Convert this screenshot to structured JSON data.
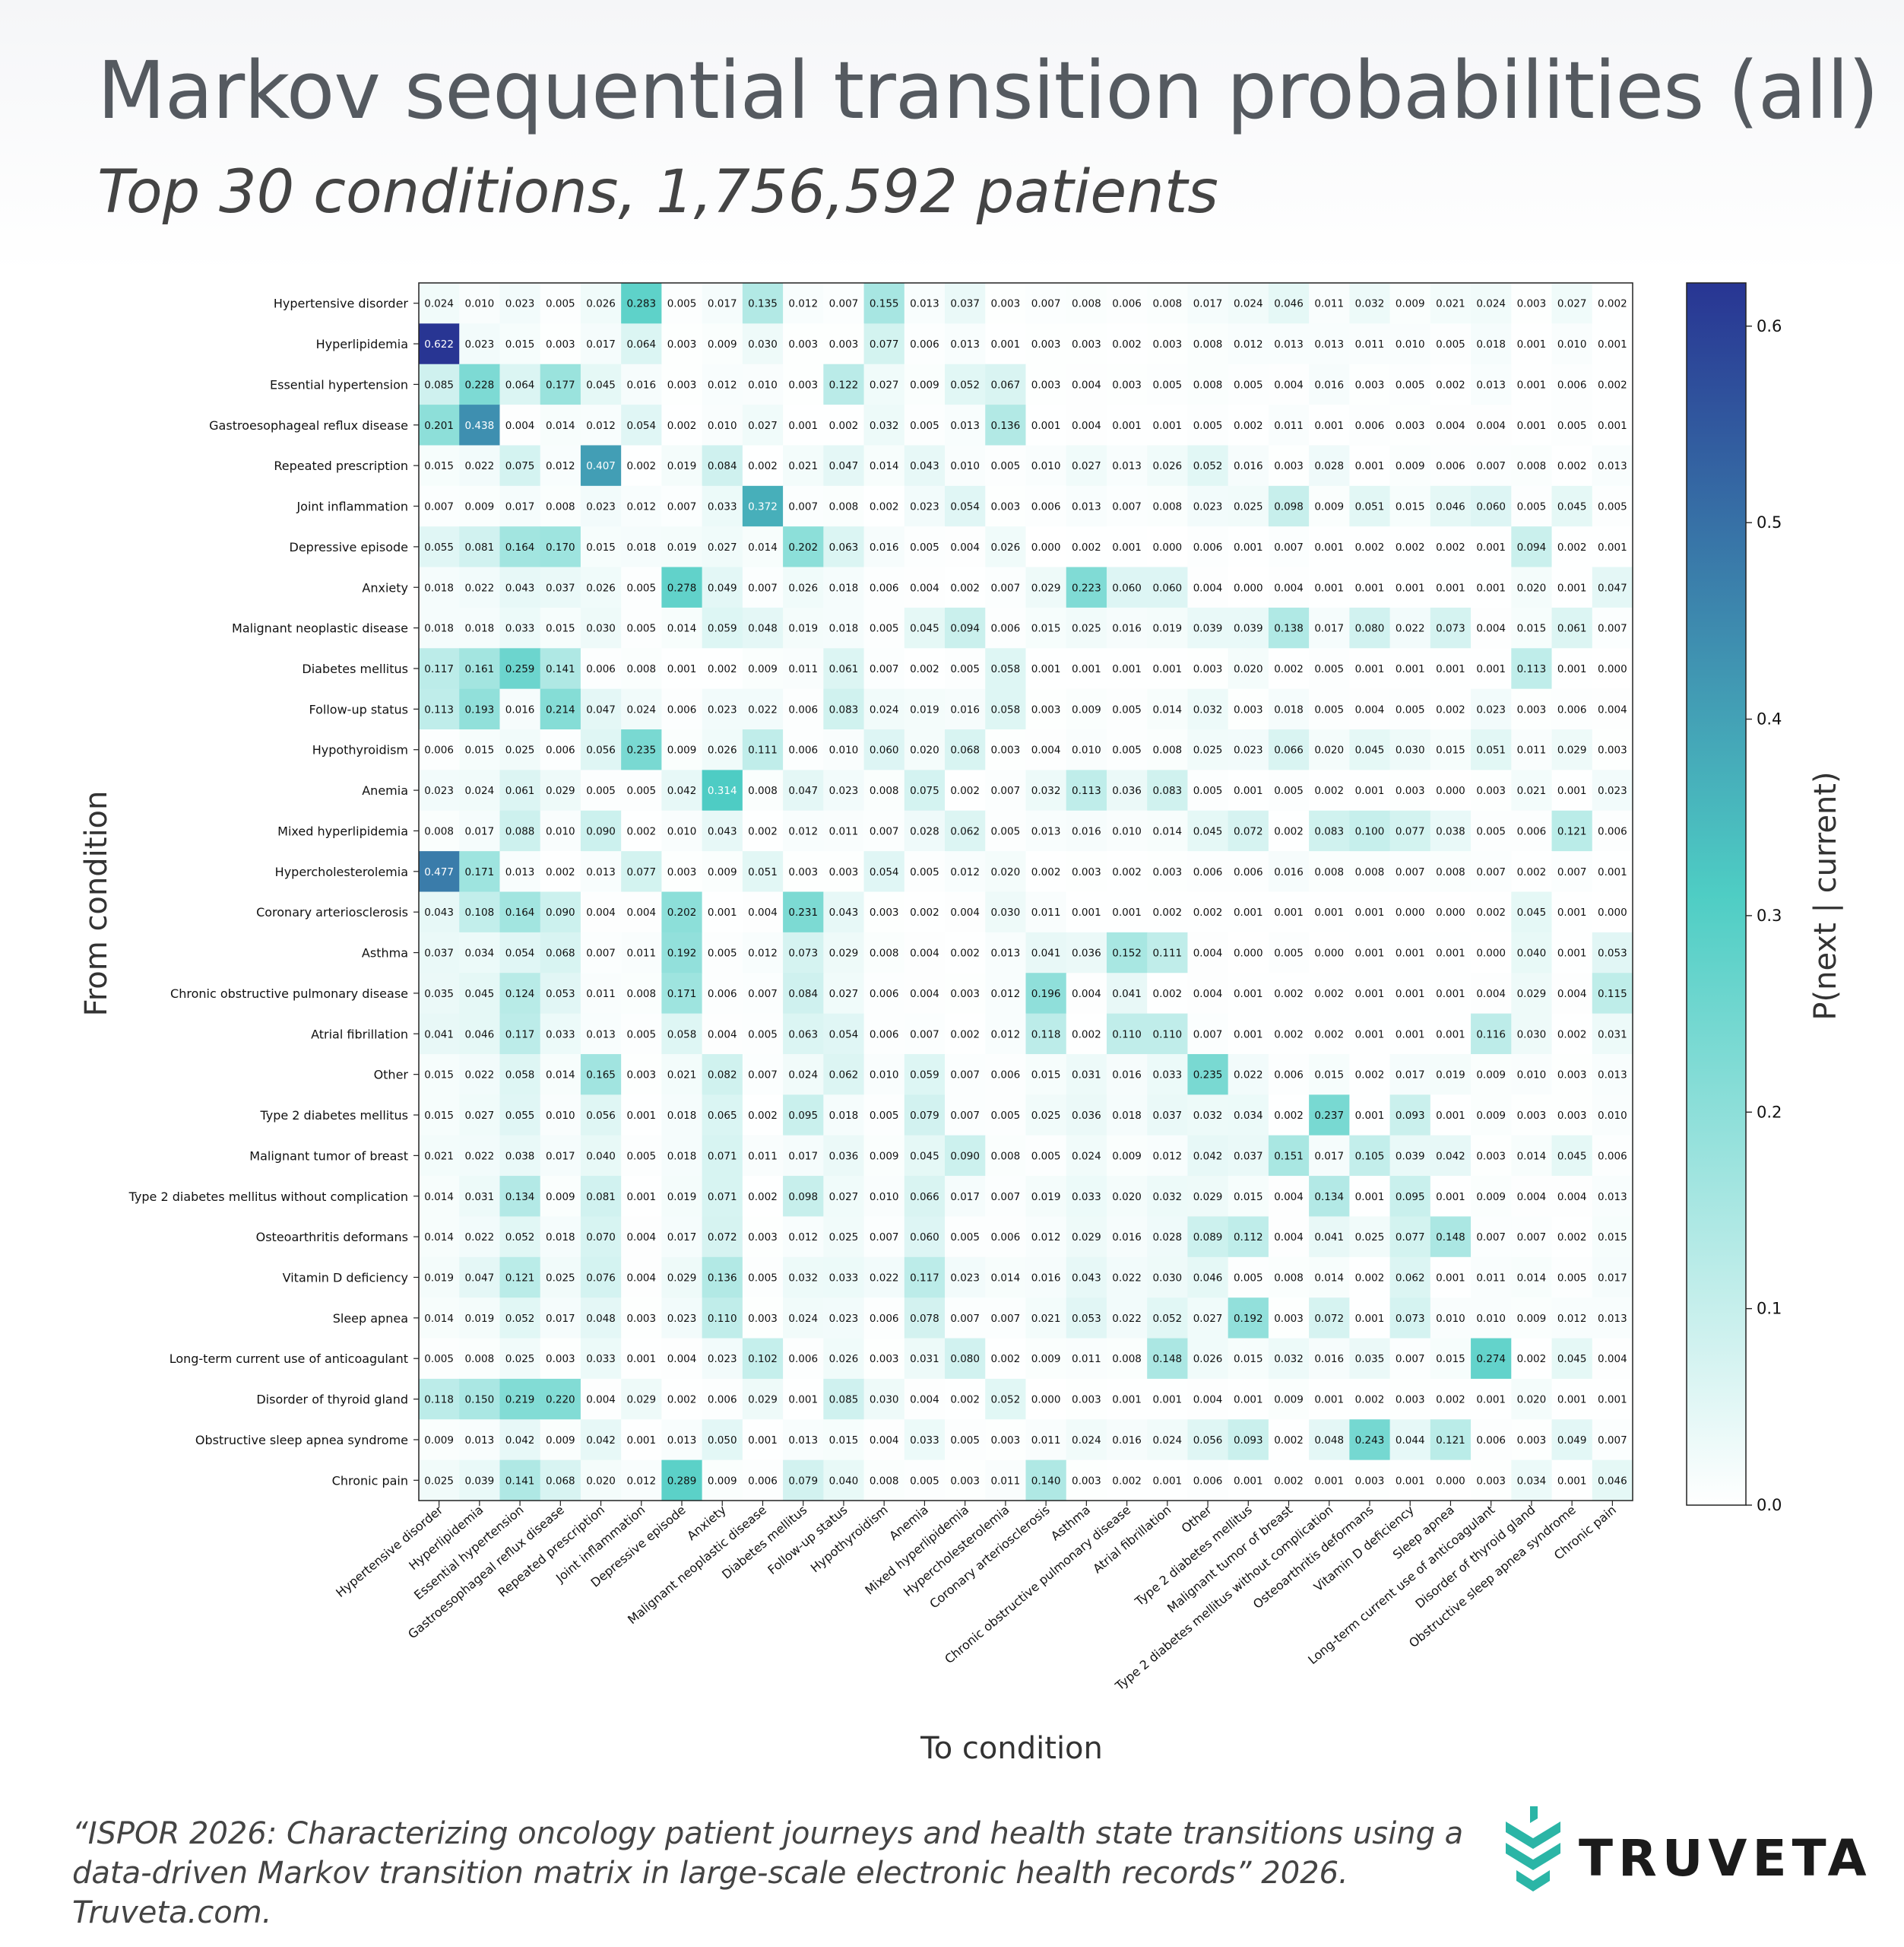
{
  "header": {
    "title": "Markov sequential transition probabilities (all)",
    "subtitle": "Top 30 conditions, 1,756,592 patients"
  },
  "footer": {
    "citation": "“ISPOR 2026: Characterizing oncology patient journeys and health state transitions using a data-driven Markov transition matrix in large-scale electronic health records” 2026. Truveta.com.",
    "brand": "TRUVETA",
    "brand_color": "#2bb5a6"
  },
  "chart_data": {
    "type": "heatmap",
    "xlabel": "To condition",
    "ylabel": "From condition",
    "colorbar_label": "P(next | current)",
    "colorbar_ticks": [
      0.0,
      0.1,
      0.2,
      0.3,
      0.4,
      0.5,
      0.6
    ],
    "colorbar_tick_labels": [
      "0.0",
      "0.1",
      "0.2",
      "0.3",
      "0.4",
      "0.5",
      "0.6"
    ],
    "vmin": 0.0,
    "vmax": 0.622,
    "colormap": [
      "#ffffff",
      "#4ecdc4",
      "#283593"
    ],
    "labels": [
      "Hypertensive disorder",
      "Hyperlipidemia",
      "Essential hypertension",
      "Gastroesophageal reflux disease",
      "Repeated prescription",
      "Joint inflammation",
      "Depressive episode",
      "Anxiety",
      "Malignant neoplastic disease",
      "Diabetes mellitus",
      "Follow-up status",
      "Hypothyroidism",
      "Anemia",
      "Mixed hyperlipidemia",
      "Hypercholesterolemia",
      "Coronary arteriosclerosis",
      "Asthma",
      "Chronic obstructive pulmonary disease",
      "Atrial fibrillation",
      "Other",
      "Type 2 diabetes mellitus",
      "Malignant tumor of breast",
      "Type 2 diabetes mellitus without complication",
      "Osteoarthritis deformans",
      "Vitamin D deficiency",
      "Sleep apnea",
      "Long-term current use of anticoagulant",
      "Disorder of thyroid gland",
      "Obstructive sleep apnea syndrome",
      "Chronic pain"
    ],
    "matrix": [
      [
        "0.024",
        "0.010",
        "0.023",
        "0.005",
        "0.026",
        "0.283",
        "0.005",
        "0.017",
        "0.135",
        "0.012",
        "0.007",
        "0.155",
        "0.013",
        "0.037",
        "0.003",
        "0.007",
        "0.008",
        "0.006",
        "0.008",
        "0.017",
        "0.024",
        "0.046",
        "0.011",
        "0.032",
        "0.009",
        "0.021",
        "0.024",
        "0.003",
        "0.027",
        "0.002"
      ],
      [
        "0.622",
        "0.023",
        "0.015",
        "0.003",
        "0.017",
        "0.064",
        "0.003",
        "0.009",
        "0.030",
        "0.003",
        "0.003",
        "0.077",
        "0.006",
        "0.013",
        "0.001",
        "0.003",
        "0.003",
        "0.002",
        "0.003",
        "0.008",
        "0.012",
        "0.013",
        "0.013",
        "0.011",
        "0.010",
        "0.005",
        "0.018",
        "0.001",
        "0.010",
        "0.001"
      ],
      [
        "0.085",
        "0.228",
        "0.064",
        "0.177",
        "0.045",
        "0.016",
        "0.003",
        "0.012",
        "0.010",
        "0.003",
        "0.122",
        "0.027",
        "0.009",
        "0.052",
        "0.067",
        "0.003",
        "0.004",
        "0.003",
        "0.005",
        "0.008",
        "0.005",
        "0.004",
        "0.016",
        "0.003",
        "0.005",
        "0.002",
        "0.013",
        "0.001",
        "0.006",
        "0.002"
      ],
      [
        "0.201",
        "0.438",
        "0.004",
        "0.014",
        "0.012",
        "0.054",
        "0.002",
        "0.010",
        "0.027",
        "0.001",
        "0.002",
        "0.032",
        "0.005",
        "0.013",
        "0.136",
        "0.001",
        "0.004",
        "0.001",
        "0.001",
        "0.005",
        "0.002",
        "0.011",
        "0.001",
        "0.006",
        "0.003",
        "0.004",
        "0.004",
        "0.001",
        "0.005",
        "0.001"
      ],
      [
        "0.015",
        "0.022",
        "0.075",
        "0.012",
        "0.407",
        "0.002",
        "0.019",
        "0.084",
        "0.002",
        "0.021",
        "0.047",
        "0.014",
        "0.043",
        "0.010",
        "0.005",
        "0.010",
        "0.027",
        "0.013",
        "0.026",
        "0.052",
        "0.016",
        "0.003",
        "0.028",
        "0.001",
        "0.009",
        "0.006",
        "0.007",
        "0.008",
        "0.002",
        "0.013"
      ],
      [
        "0.007",
        "0.009",
        "0.017",
        "0.008",
        "0.023",
        "0.012",
        "0.007",
        "0.033",
        "0.372",
        "0.007",
        "0.008",
        "0.002",
        "0.023",
        "0.054",
        "0.003",
        "0.006",
        "0.013",
        "0.007",
        "0.008",
        "0.023",
        "0.025",
        "0.098",
        "0.009",
        "0.051",
        "0.015",
        "0.046",
        "0.060",
        "0.005",
        "0.045",
        "0.005"
      ],
      [
        "0.055",
        "0.081",
        "0.164",
        "0.170",
        "0.015",
        "0.018",
        "0.019",
        "0.027",
        "0.014",
        "0.202",
        "0.063",
        "0.016",
        "0.005",
        "0.004",
        "0.026",
        "0.000",
        "0.002",
        "0.001",
        "0.000",
        "0.006",
        "0.001",
        "0.007",
        "0.001",
        "0.002",
        "0.002",
        "0.002",
        "0.001",
        "0.094",
        "0.002",
        "0.001"
      ],
      [
        "0.018",
        "0.022",
        "0.043",
        "0.037",
        "0.026",
        "0.005",
        "0.278",
        "0.049",
        "0.007",
        "0.026",
        "0.018",
        "0.006",
        "0.004",
        "0.002",
        "0.007",
        "0.029",
        "0.223",
        "0.060",
        "0.060",
        "0.004",
        "0.000",
        "0.004",
        "0.001",
        "0.001",
        "0.001",
        "0.001",
        "0.001",
        "0.020",
        "0.001",
        "0.047"
      ],
      [
        "0.018",
        "0.018",
        "0.033",
        "0.015",
        "0.030",
        "0.005",
        "0.014",
        "0.059",
        "0.048",
        "0.019",
        "0.018",
        "0.005",
        "0.045",
        "0.094",
        "0.006",
        "0.015",
        "0.025",
        "0.016",
        "0.019",
        "0.039",
        "0.039",
        "0.138",
        "0.017",
        "0.080",
        "0.022",
        "0.073",
        "0.004",
        "0.015",
        "0.061",
        "0.007"
      ],
      [
        "0.117",
        "0.161",
        "0.259",
        "0.141",
        "0.006",
        "0.008",
        "0.001",
        "0.002",
        "0.009",
        "0.011",
        "0.061",
        "0.007",
        "0.002",
        "0.005",
        "0.058",
        "0.001",
        "0.001",
        "0.001",
        "0.001",
        "0.003",
        "0.020",
        "0.002",
        "0.005",
        "0.001",
        "0.001",
        "0.001",
        "0.001",
        "0.113",
        "0.001",
        "0.000"
      ],
      [
        "0.113",
        "0.193",
        "0.016",
        "0.214",
        "0.047",
        "0.024",
        "0.006",
        "0.023",
        "0.022",
        "0.006",
        "0.083",
        "0.024",
        "0.019",
        "0.016",
        "0.058",
        "0.003",
        "0.009",
        "0.005",
        "0.014",
        "0.032",
        "0.003",
        "0.018",
        "0.005",
        "0.004",
        "0.005",
        "0.002",
        "0.023",
        "0.003",
        "0.006",
        "0.004"
      ],
      [
        "0.006",
        "0.015",
        "0.025",
        "0.006",
        "0.056",
        "0.235",
        "0.009",
        "0.026",
        "0.111",
        "0.006",
        "0.010",
        "0.060",
        "0.020",
        "0.068",
        "0.003",
        "0.004",
        "0.010",
        "0.005",
        "0.008",
        "0.025",
        "0.023",
        "0.066",
        "0.020",
        "0.045",
        "0.030",
        "0.015",
        "0.051",
        "0.011",
        "0.029",
        "0.003"
      ],
      [
        "0.023",
        "0.024",
        "0.061",
        "0.029",
        "0.005",
        "0.005",
        "0.042",
        "0.314",
        "0.008",
        "0.047",
        "0.023",
        "0.008",
        "0.075",
        "0.002",
        "0.007",
        "0.032",
        "0.113",
        "0.036",
        "0.083",
        "0.005",
        "0.001",
        "0.005",
        "0.002",
        "0.001",
        "0.003",
        "0.000",
        "0.003",
        "0.021",
        "0.001",
        "0.023"
      ],
      [
        "0.008",
        "0.017",
        "0.088",
        "0.010",
        "0.090",
        "0.002",
        "0.010",
        "0.043",
        "0.002",
        "0.012",
        "0.011",
        "0.007",
        "0.028",
        "0.062",
        "0.005",
        "0.013",
        "0.016",
        "0.010",
        "0.014",
        "0.045",
        "0.072",
        "0.002",
        "0.083",
        "0.100",
        "0.077",
        "0.038",
        "0.005",
        "0.006",
        "0.121",
        "0.006"
      ],
      [
        "0.477",
        "0.171",
        "0.013",
        "0.002",
        "0.013",
        "0.077",
        "0.003",
        "0.009",
        "0.051",
        "0.003",
        "0.003",
        "0.054",
        "0.005",
        "0.012",
        "0.020",
        "0.002",
        "0.003",
        "0.002",
        "0.003",
        "0.006",
        "0.006",
        "0.016",
        "0.008",
        "0.008",
        "0.007",
        "0.008",
        "0.007",
        "0.002",
        "0.007",
        "0.001"
      ],
      [
        "0.043",
        "0.108",
        "0.164",
        "0.090",
        "0.004",
        "0.004",
        "0.202",
        "0.001",
        "0.004",
        "0.231",
        "0.043",
        "0.003",
        "0.002",
        "0.004",
        "0.030",
        "0.011",
        "0.001",
        "0.001",
        "0.002",
        "0.002",
        "0.001",
        "0.001",
        "0.001",
        "0.001",
        "0.000",
        "0.000",
        "0.002",
        "0.045",
        "0.001",
        "0.000"
      ],
      [
        "0.037",
        "0.034",
        "0.054",
        "0.068",
        "0.007",
        "0.011",
        "0.192",
        "0.005",
        "0.012",
        "0.073",
        "0.029",
        "0.008",
        "0.004",
        "0.002",
        "0.013",
        "0.041",
        "0.036",
        "0.152",
        "0.111",
        "0.004",
        "0.000",
        "0.005",
        "0.000",
        "0.001",
        "0.001",
        "0.001",
        "0.000",
        "0.040",
        "0.001",
        "0.053"
      ],
      [
        "0.035",
        "0.045",
        "0.124",
        "0.053",
        "0.011",
        "0.008",
        "0.171",
        "0.006",
        "0.007",
        "0.084",
        "0.027",
        "0.006",
        "0.004",
        "0.003",
        "0.012",
        "0.196",
        "0.004",
        "0.041",
        "0.002",
        "0.004",
        "0.001",
        "0.002",
        "0.002",
        "0.001",
        "0.001",
        "0.001",
        "0.004",
        "0.029",
        "0.004",
        "0.115"
      ],
      [
        "0.041",
        "0.046",
        "0.117",
        "0.033",
        "0.013",
        "0.005",
        "0.058",
        "0.004",
        "0.005",
        "0.063",
        "0.054",
        "0.006",
        "0.007",
        "0.002",
        "0.012",
        "0.118",
        "0.002",
        "0.110",
        "0.110",
        "0.007",
        "0.001",
        "0.002",
        "0.002",
        "0.001",
        "0.001",
        "0.001",
        "0.116",
        "0.030",
        "0.002",
        "0.031"
      ],
      [
        "0.015",
        "0.022",
        "0.058",
        "0.014",
        "0.165",
        "0.003",
        "0.021",
        "0.082",
        "0.007",
        "0.024",
        "0.062",
        "0.010",
        "0.059",
        "0.007",
        "0.006",
        "0.015",
        "0.031",
        "0.016",
        "0.033",
        "0.235",
        "0.022",
        "0.006",
        "0.015",
        "0.002",
        "0.017",
        "0.019",
        "0.009",
        "0.010",
        "0.003",
        "0.013"
      ],
      [
        "0.015",
        "0.027",
        "0.055",
        "0.010",
        "0.056",
        "0.001",
        "0.018",
        "0.065",
        "0.002",
        "0.095",
        "0.018",
        "0.005",
        "0.079",
        "0.007",
        "0.005",
        "0.025",
        "0.036",
        "0.018",
        "0.037",
        "0.032",
        "0.034",
        "0.002",
        "0.237",
        "0.001",
        "0.093",
        "0.001",
        "0.009",
        "0.003",
        "0.003",
        "0.010"
      ],
      [
        "0.021",
        "0.022",
        "0.038",
        "0.017",
        "0.040",
        "0.005",
        "0.018",
        "0.071",
        "0.011",
        "0.017",
        "0.036",
        "0.009",
        "0.045",
        "0.090",
        "0.008",
        "0.005",
        "0.024",
        "0.009",
        "0.012",
        "0.042",
        "0.037",
        "0.151",
        "0.017",
        "0.105",
        "0.039",
        "0.042",
        "0.003",
        "0.014",
        "0.045",
        "0.006"
      ],
      [
        "0.014",
        "0.031",
        "0.134",
        "0.009",
        "0.081",
        "0.001",
        "0.019",
        "0.071",
        "0.002",
        "0.098",
        "0.027",
        "0.010",
        "0.066",
        "0.017",
        "0.007",
        "0.019",
        "0.033",
        "0.020",
        "0.032",
        "0.029",
        "0.015",
        "0.004",
        "0.134",
        "0.001",
        "0.095",
        "0.001",
        "0.009",
        "0.004",
        "0.004",
        "0.013"
      ],
      [
        "0.014",
        "0.022",
        "0.052",
        "0.018",
        "0.070",
        "0.004",
        "0.017",
        "0.072",
        "0.003",
        "0.012",
        "0.025",
        "0.007",
        "0.060",
        "0.005",
        "0.006",
        "0.012",
        "0.029",
        "0.016",
        "0.028",
        "0.089",
        "0.112",
        "0.004",
        "0.041",
        "0.025",
        "0.077",
        "0.148",
        "0.007",
        "0.007",
        "0.002",
        "0.015"
      ],
      [
        "0.019",
        "0.047",
        "0.121",
        "0.025",
        "0.076",
        "0.004",
        "0.029",
        "0.136",
        "0.005",
        "0.032",
        "0.033",
        "0.022",
        "0.117",
        "0.023",
        "0.014",
        "0.016",
        "0.043",
        "0.022",
        "0.030",
        "0.046",
        "0.005",
        "0.008",
        "0.014",
        "0.002",
        "0.062",
        "0.001",
        "0.011",
        "0.014",
        "0.005",
        "0.017"
      ],
      [
        "0.014",
        "0.019",
        "0.052",
        "0.017",
        "0.048",
        "0.003",
        "0.023",
        "0.110",
        "0.003",
        "0.024",
        "0.023",
        "0.006",
        "0.078",
        "0.007",
        "0.007",
        "0.021",
        "0.053",
        "0.022",
        "0.052",
        "0.027",
        "0.192",
        "0.003",
        "0.072",
        "0.001",
        "0.073",
        "0.010",
        "0.010",
        "0.009",
        "0.012",
        "0.013"
      ],
      [
        "0.005",
        "0.008",
        "0.025",
        "0.003",
        "0.033",
        "0.001",
        "0.004",
        "0.023",
        "0.102",
        "0.006",
        "0.026",
        "0.003",
        "0.031",
        "0.080",
        "0.002",
        "0.009",
        "0.011",
        "0.008",
        "0.148",
        "0.026",
        "0.015",
        "0.032",
        "0.016",
        "0.035",
        "0.007",
        "0.015",
        "0.274",
        "0.002",
        "0.045",
        "0.004"
      ],
      [
        "0.118",
        "0.150",
        "0.219",
        "0.220",
        "0.004",
        "0.029",
        "0.002",
        "0.006",
        "0.029",
        "0.001",
        "0.085",
        "0.030",
        "0.004",
        "0.002",
        "0.052",
        "0.000",
        "0.003",
        "0.001",
        "0.001",
        "0.004",
        "0.001",
        "0.009",
        "0.001",
        "0.002",
        "0.003",
        "0.002",
        "0.001",
        "0.020",
        "0.001",
        "0.001"
      ],
      [
        "0.009",
        "0.013",
        "0.042",
        "0.009",
        "0.042",
        "0.001",
        "0.013",
        "0.050",
        "0.001",
        "0.013",
        "0.015",
        "0.004",
        "0.033",
        "0.005",
        "0.003",
        "0.011",
        "0.024",
        "0.016",
        "0.024",
        "0.056",
        "0.093",
        "0.002",
        "0.048",
        "0.243",
        "0.044",
        "0.121",
        "0.006",
        "0.003",
        "0.049",
        "0.007"
      ],
      [
        "0.025",
        "0.039",
        "0.141",
        "0.068",
        "0.020",
        "0.012",
        "0.289",
        "0.009",
        "0.006",
        "0.079",
        "0.040",
        "0.008",
        "0.005",
        "0.003",
        "0.011",
        "0.140",
        "0.003",
        "0.002",
        "0.001",
        "0.006",
        "0.001",
        "0.002",
        "0.001",
        "0.003",
        "0.001",
        "0.000",
        "0.003",
        "0.034",
        "0.001",
        "0.046"
      ]
    ]
  }
}
